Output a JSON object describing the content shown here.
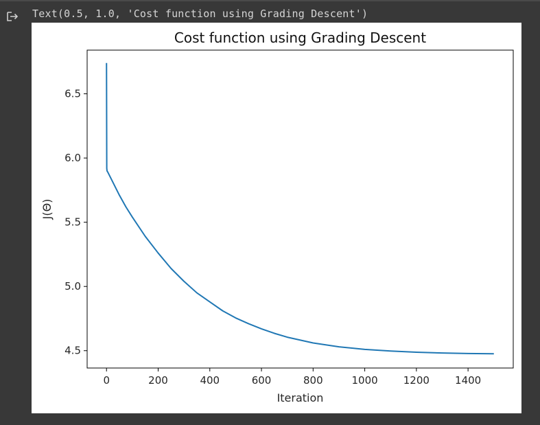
{
  "output": {
    "text": "Text(0.5, 1.0, 'Cost function using Grading Descent')",
    "icon": "output-arrow-icon"
  },
  "chart_data": {
    "type": "line",
    "title": "Cost function using Grading Descent",
    "xlabel": "Iteration",
    "ylabel": "J(Θ)",
    "xlim": [
      -75,
      1575
    ],
    "ylim": [
      4.365,
      6.84
    ],
    "xticks": [
      0,
      200,
      400,
      600,
      800,
      1000,
      1200,
      1400
    ],
    "yticks": [
      4.5,
      5.0,
      5.5,
      6.0,
      6.5
    ],
    "xtick_labels": [
      "0",
      "200",
      "400",
      "600",
      "800",
      "1000",
      "1200",
      "1400"
    ],
    "ytick_labels": [
      "4.5",
      "5.0",
      "5.5",
      "6.0",
      "6.5"
    ],
    "grid": false,
    "series": [
      {
        "color": "#1f77b4",
        "x": [
          0,
          1,
          2,
          5,
          10,
          25,
          50,
          75,
          100,
          150,
          200,
          250,
          300,
          350,
          400,
          450,
          500,
          550,
          600,
          650,
          700,
          800,
          900,
          1000,
          1100,
          1200,
          1300,
          1400,
          1500
        ],
        "y": [
          6.74,
          5.92,
          5.9,
          5.89,
          5.87,
          5.81,
          5.71,
          5.62,
          5.54,
          5.39,
          5.26,
          5.14,
          5.04,
          4.95,
          4.88,
          4.81,
          4.755,
          4.71,
          4.67,
          4.635,
          4.605,
          4.56,
          4.53,
          4.51,
          4.497,
          4.488,
          4.482,
          4.478,
          4.476
        ]
      }
    ]
  }
}
